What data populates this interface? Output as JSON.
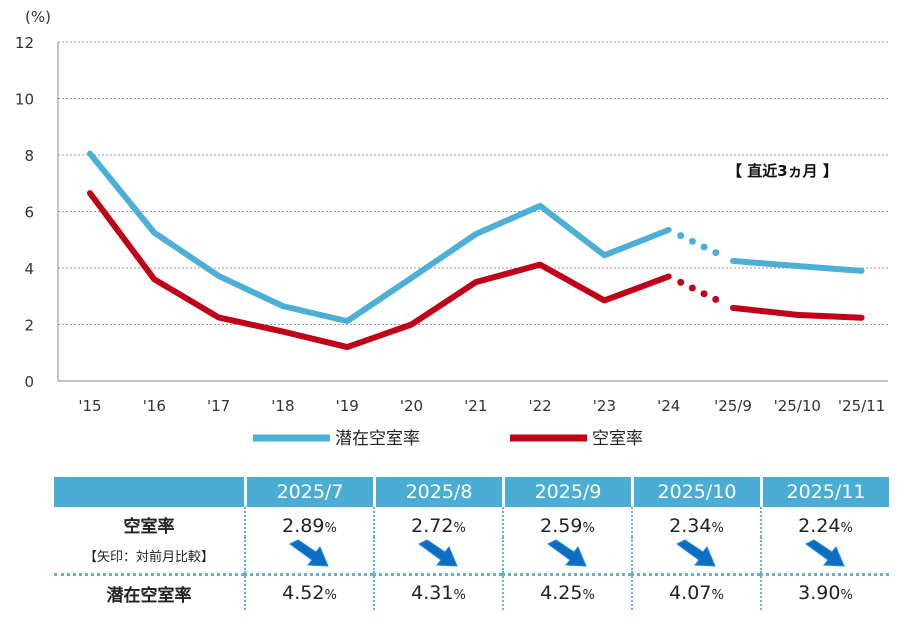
{
  "chart_data": {
    "type": "line",
    "y_unit": "(%)",
    "ylim": [
      0,
      12
    ],
    "yticks": [
      0,
      2,
      4,
      6,
      8,
      10,
      12
    ],
    "categories": [
      "'15",
      "'16",
      "'17",
      "'18",
      "'19",
      "'20",
      "'21",
      "'22",
      "'23",
      "'24",
      "'25/9",
      "'25/10",
      "'25/11"
    ],
    "grid": true,
    "annotation": "【 直近3ヵ月 】",
    "series": [
      {
        "name": "潜在空室率",
        "color": "#4bafd6",
        "values": [
          8.05,
          5.25,
          3.72,
          2.65,
          2.12,
          3.65,
          5.2,
          6.2,
          4.45,
          5.35,
          4.25,
          4.07,
          3.9
        ]
      },
      {
        "name": "空室率",
        "color": "#c00018",
        "values": [
          6.65,
          3.6,
          2.25,
          1.75,
          1.2,
          2.0,
          3.5,
          4.12,
          2.85,
          3.7,
          2.59,
          2.34,
          2.24
        ]
      }
    ]
  },
  "table": {
    "months": [
      "2025/7",
      "2025/8",
      "2025/9",
      "2025/10",
      "2025/11"
    ],
    "vacancy_label": "空室率",
    "vacancy_values": [
      "2.89",
      "2.72",
      "2.59",
      "2.34",
      "2.24"
    ],
    "arrow_note": "【矢印：対前月比較】",
    "potential_label": "潜在空室率",
    "potential_values": [
      "4.52",
      "4.31",
      "4.25",
      "4.07",
      "3.90"
    ],
    "percent_sign": "%"
  }
}
